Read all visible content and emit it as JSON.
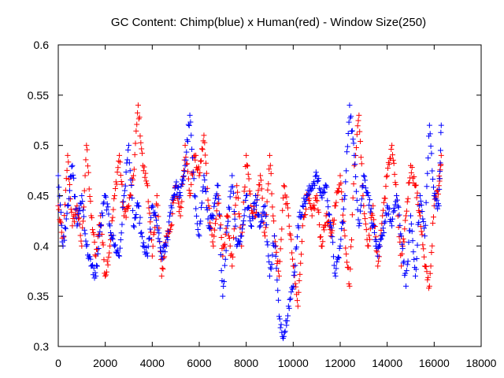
{
  "chart_data": {
    "type": "scatter",
    "title": "GC Content: Chimp(blue) x Human(red) - Window Size(250)",
    "xlabel": "",
    "ylabel": "",
    "xlim": [
      0,
      18000
    ],
    "ylim": [
      0.3,
      0.6
    ],
    "xticks": [
      "0",
      "2000",
      "4000",
      "6000",
      "8000",
      "10000",
      "12000",
      "14000",
      "16000",
      "18000"
    ],
    "yticks": [
      "0.3",
      "0.35",
      "0.4",
      "0.45",
      "0.5",
      "0.55",
      "0.6"
    ],
    "grid": false,
    "marker": "plus",
    "series": [
      {
        "color": "#ff0000",
        "x": [
          0,
          200,
          400,
          600,
          800,
          1000,
          1200,
          1400,
          1600,
          1800,
          2000,
          2200,
          2400,
          2600,
          2800,
          3000,
          3200,
          3400,
          3600,
          3800,
          4000,
          4200,
          4400,
          4600,
          4800,
          5000,
          5200,
          5400,
          5600,
          5800,
          6000,
          6200,
          6400,
          6600,
          6800,
          7000,
          7200,
          7400,
          7600,
          7800,
          8000,
          8200,
          8400,
          8600,
          8800,
          9000,
          9200,
          9400,
          9600,
          9800,
          10000,
          10200,
          10400,
          10600,
          10800,
          11000,
          11200,
          11400,
          11600,
          11800,
          12000,
          12200,
          12400,
          12600,
          12800,
          13000,
          13200,
          13400,
          13600,
          13800,
          14000,
          14200,
          14400,
          14600,
          14800,
          15000,
          15200,
          15400,
          15600,
          15800,
          16000,
          16200,
          16300
        ],
        "y": [
          0.44,
          0.4,
          0.49,
          0.42,
          0.44,
          0.4,
          0.5,
          0.43,
          0.39,
          0.43,
          0.37,
          0.4,
          0.45,
          0.49,
          0.43,
          0.44,
          0.47,
          0.54,
          0.48,
          0.46,
          0.39,
          0.45,
          0.37,
          0.41,
          0.42,
          0.46,
          0.43,
          0.5,
          0.45,
          0.49,
          0.47,
          0.51,
          0.44,
          0.4,
          0.45,
          0.39,
          0.43,
          0.38,
          0.46,
          0.4,
          0.49,
          0.44,
          0.43,
          0.47,
          0.41,
          0.49,
          0.41,
          0.37,
          0.46,
          0.43,
          0.38,
          0.34,
          0.42,
          0.45,
          0.43,
          0.45,
          0.4,
          0.43,
          0.41,
          0.44,
          0.47,
          0.41,
          0.36,
          0.48,
          0.53,
          0.44,
          0.4,
          0.44,
          0.38,
          0.43,
          0.47,
          0.5,
          0.45,
          0.38,
          0.43,
          0.48,
          0.46,
          0.43,
          0.38,
          0.36,
          0.44,
          0.46,
          0.49
        ]
      },
      {
        "color": "#0000ff",
        "x": [
          0,
          200,
          400,
          600,
          800,
          1000,
          1200,
          1400,
          1600,
          1800,
          2000,
          2200,
          2400,
          2600,
          2800,
          3000,
          3200,
          3400,
          3600,
          3800,
          4000,
          4200,
          4400,
          4600,
          4800,
          5000,
          5200,
          5400,
          5600,
          5800,
          6000,
          6200,
          6400,
          6600,
          6800,
          7000,
          7200,
          7400,
          7600,
          7800,
          8000,
          8200,
          8400,
          8600,
          8800,
          9000,
          9200,
          9400,
          9600,
          9800,
          10000,
          10200,
          10400,
          10600,
          10800,
          11000,
          11200,
          11400,
          11600,
          11800,
          12000,
          12200,
          12400,
          12600,
          12800,
          13000,
          13200,
          13400,
          13600,
          13800,
          14000,
          14200,
          14400,
          14600,
          14800,
          15000,
          15200,
          15400,
          15600,
          15800,
          16000,
          16200,
          16300
        ],
        "y": [
          0.47,
          0.4,
          0.44,
          0.48,
          0.42,
          0.45,
          0.4,
          0.38,
          0.37,
          0.42,
          0.45,
          0.42,
          0.4,
          0.39,
          0.45,
          0.5,
          0.42,
          0.44,
          0.4,
          0.39,
          0.44,
          0.42,
          0.39,
          0.4,
          0.44,
          0.46,
          0.45,
          0.48,
          0.53,
          0.45,
          0.41,
          0.47,
          0.42,
          0.43,
          0.46,
          0.35,
          0.42,
          0.47,
          0.4,
          0.41,
          0.45,
          0.42,
          0.45,
          0.42,
          0.44,
          0.37,
          0.41,
          0.33,
          0.31,
          0.34,
          0.36,
          0.42,
          0.44,
          0.45,
          0.46,
          0.47,
          0.45,
          0.46,
          0.42,
          0.37,
          0.4,
          0.45,
          0.54,
          0.49,
          0.42,
          0.47,
          0.45,
          0.42,
          0.39,
          0.41,
          0.44,
          0.42,
          0.45,
          0.41,
          0.36,
          0.43,
          0.37,
          0.45,
          0.41,
          0.52,
          0.45,
          0.44,
          0.52
        ]
      }
    ]
  }
}
